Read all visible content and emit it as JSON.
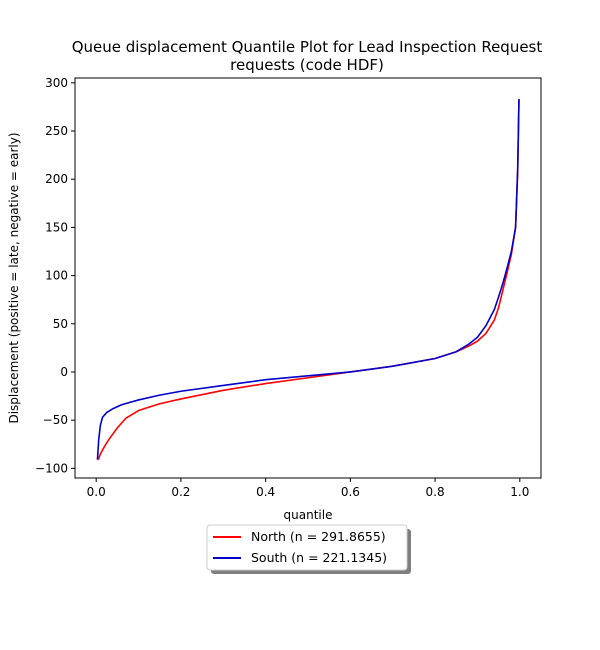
{
  "chart_data": {
    "type": "line",
    "title_lines": [
      "Queue displacement Quantile Plot for Lead Inspection Request",
      "requests (code HDF)"
    ],
    "xlabel": "quantile",
    "ylabel": "Displacement (positive = late, negative = early)",
    "xlim": [
      -0.05,
      1.05
    ],
    "ylim": [
      -110,
      305
    ],
    "xticks": [
      0.0,
      0.2,
      0.4,
      0.6,
      0.8,
      1.0
    ],
    "xtick_labels": [
      "0.0",
      "0.2",
      "0.4",
      "0.6",
      "0.8",
      "1.0"
    ],
    "yticks": [
      -100,
      -50,
      0,
      50,
      100,
      150,
      200,
      250,
      300
    ],
    "ytick_labels": [
      "−100",
      "−50",
      "0",
      "50",
      "100",
      "150",
      "200",
      "250",
      "300"
    ],
    "grid": false,
    "legend_position": "below plot",
    "series": [
      {
        "name": "North (n = 291.8655)",
        "color": "#ff0000",
        "x": [
          0.005,
          0.01,
          0.02,
          0.03,
          0.05,
          0.07,
          0.1,
          0.15,
          0.2,
          0.3,
          0.4,
          0.5,
          0.6,
          0.7,
          0.8,
          0.85,
          0.88,
          0.9,
          0.92,
          0.94,
          0.95,
          0.96,
          0.97,
          0.98,
          0.99,
          0.995,
          0.998
        ],
        "y": [
          -91,
          -85,
          -77,
          -70,
          -58,
          -48,
          -40,
          -33,
          -28,
          -19,
          -12,
          -6,
          0,
          6,
          14,
          21,
          27,
          32,
          40,
          54,
          67,
          85,
          103,
          122,
          150,
          210,
          283
        ]
      },
      {
        "name": "South (n = 221.1345)",
        "color": "#0000cc",
        "x": [
          0.003,
          0.006,
          0.01,
          0.015,
          0.025,
          0.04,
          0.06,
          0.1,
          0.15,
          0.2,
          0.3,
          0.4,
          0.5,
          0.6,
          0.7,
          0.8,
          0.85,
          0.88,
          0.9,
          0.92,
          0.94,
          0.95,
          0.96,
          0.97,
          0.98,
          0.99,
          0.995,
          0.998
        ],
        "y": [
          -91,
          -70,
          -55,
          -47,
          -42,
          -38,
          -34,
          -29,
          -24,
          -20,
          -14,
          -8,
          -4,
          0,
          6,
          14,
          21,
          29,
          36,
          48,
          65,
          78,
          92,
          108,
          125,
          150,
          210,
          283
        ]
      }
    ]
  }
}
